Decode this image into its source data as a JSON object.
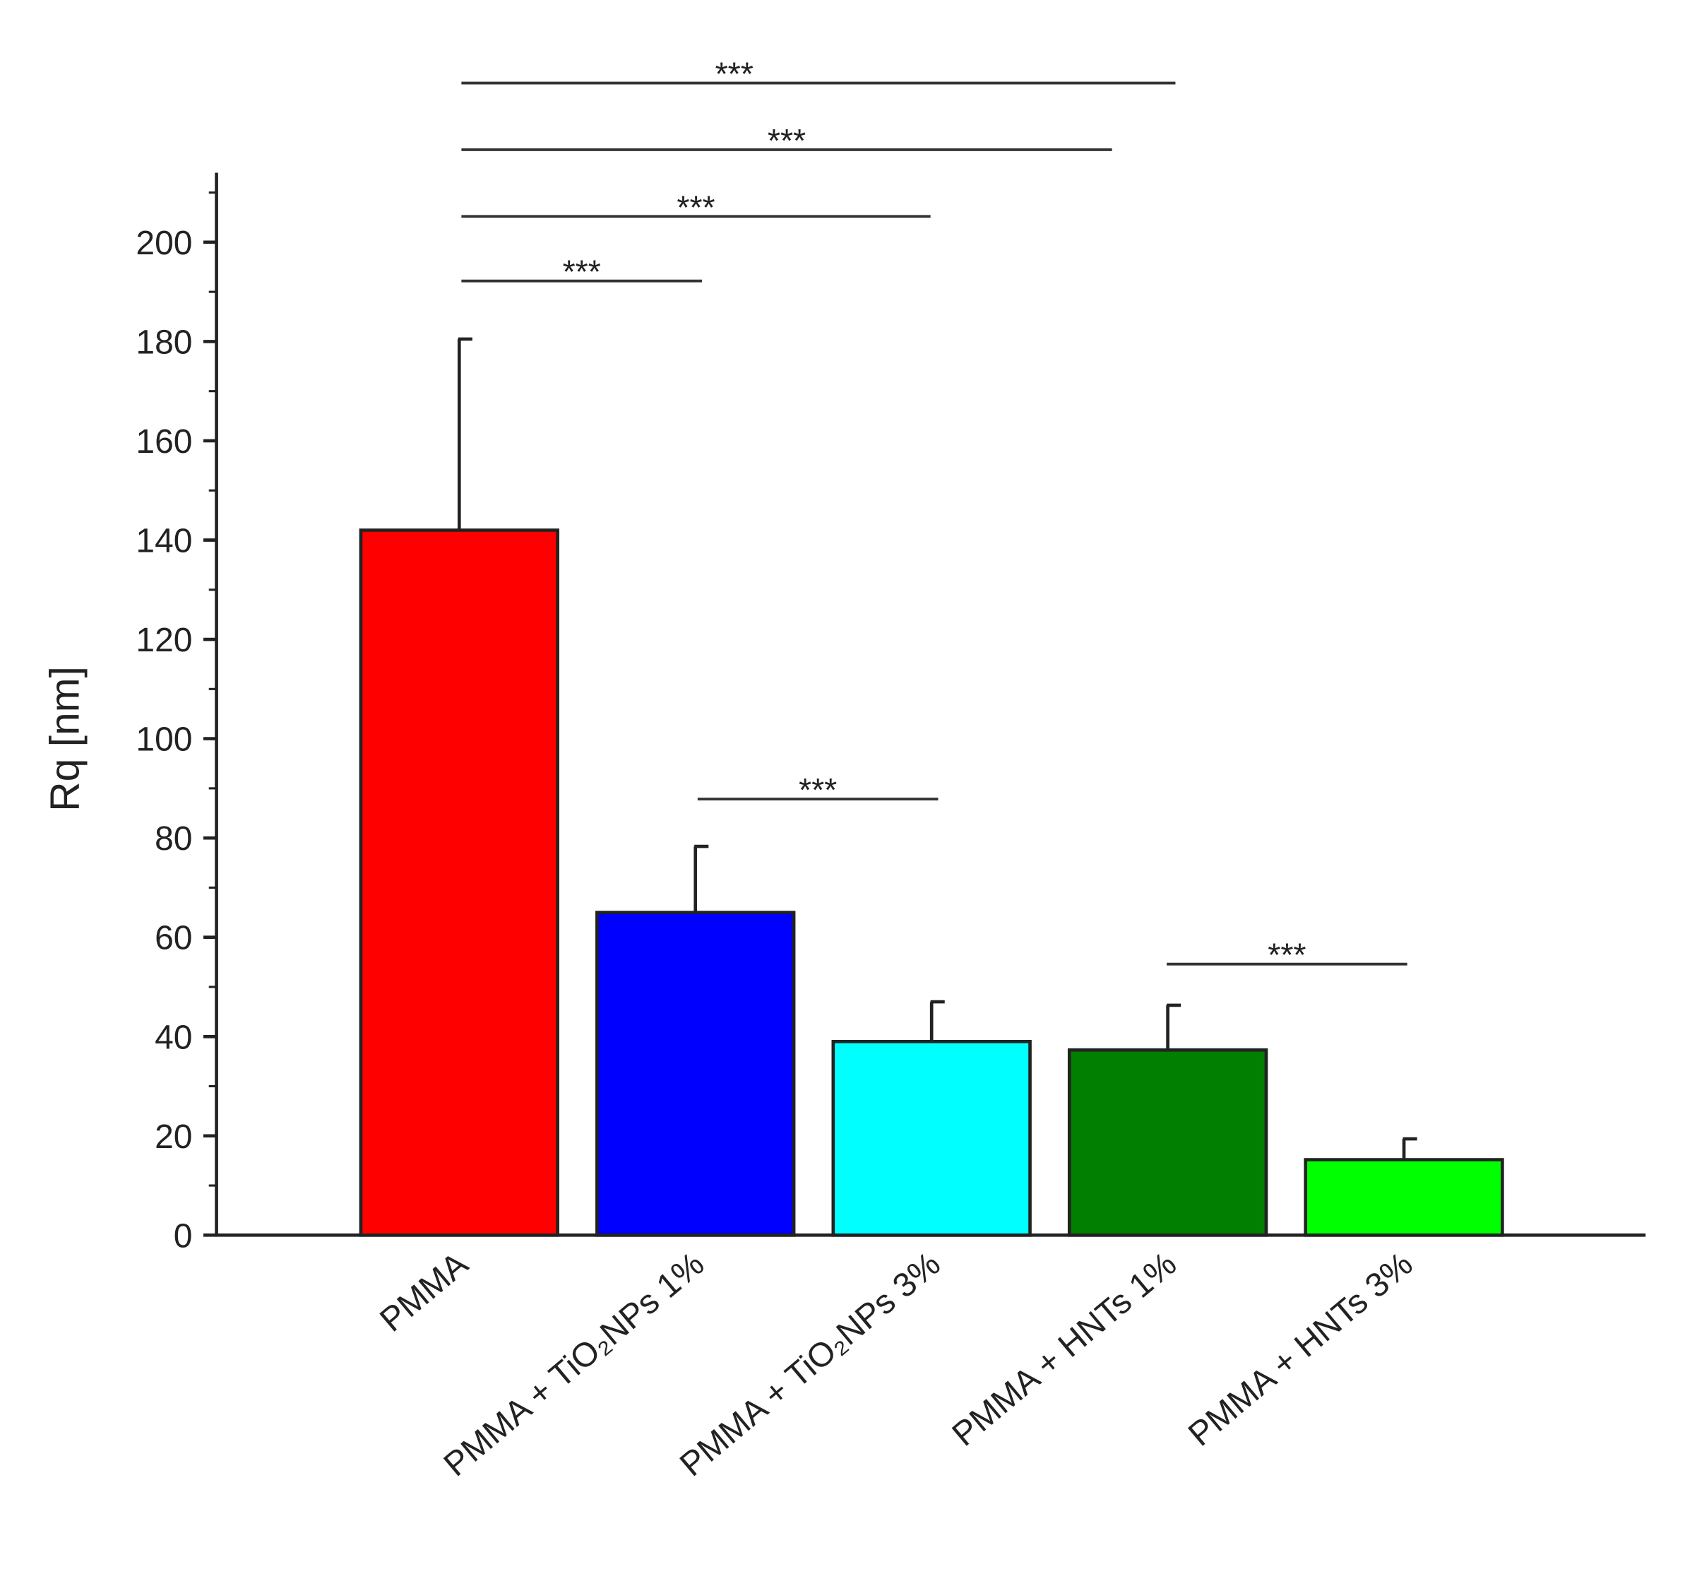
{
  "chart_data": {
    "type": "bar",
    "y_label": "Rq [nm]",
    "categories": [
      "PMMA",
      "PMMA + TiO₂NPs 1%",
      "PMMA + TiO₂NPs 3%",
      "PMMA + HNTs 1%",
      "PMMA + HNTs 3%"
    ],
    "values": [
      142,
      65,
      39,
      37.3,
      15.2
    ],
    "errors": [
      38.5,
      13.3,
      8,
      9,
      4.2
    ],
    "colors": [
      "#ff0000",
      "#0000ff",
      "#00ffff",
      "#007f00",
      "#00ff00"
    ],
    "ylim": [
      0,
      214
    ],
    "yticks": [
      0,
      20,
      40,
      60,
      80,
      100,
      120,
      140,
      160,
      180,
      200
    ],
    "minor_yticks": [
      10,
      30,
      50,
      70,
      90,
      110,
      130,
      150,
      170,
      190,
      210
    ],
    "annotations": [
      "***",
      "***",
      "***",
      "***",
      "***",
      "***"
    ]
  }
}
